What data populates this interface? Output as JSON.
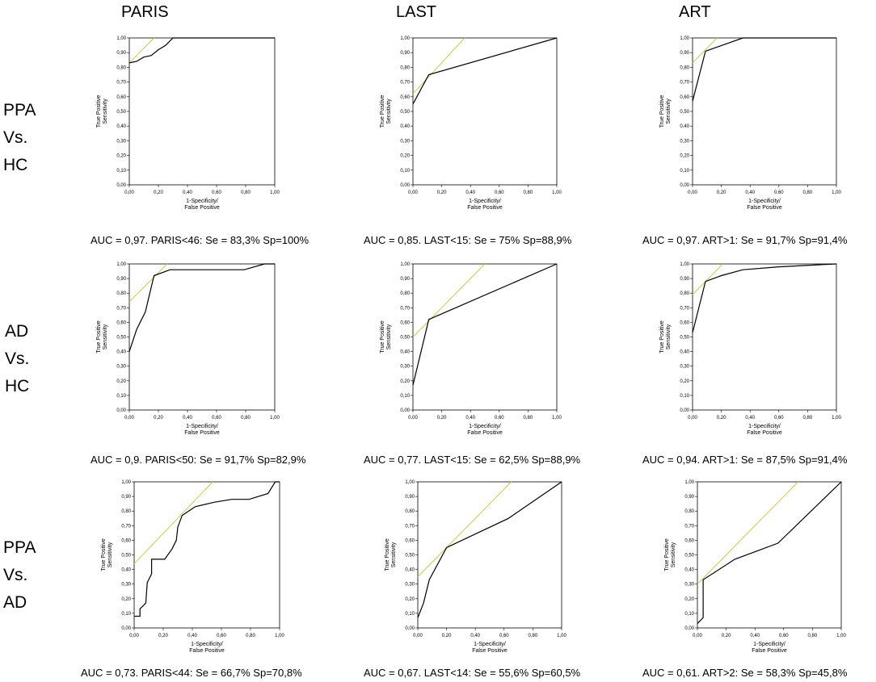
{
  "columns": [
    "PARIS",
    "LAST",
    "ART"
  ],
  "rows": [
    {
      "lines": [
        "PPA",
        "Vs.",
        "HC"
      ]
    },
    {
      "lines": [
        "AD",
        "Vs.",
        "HC"
      ]
    },
    {
      "lines": [
        "PPA",
        "Vs.",
        "AD"
      ]
    }
  ],
  "axis": {
    "xlabel1": "1-Specificity/",
    "xlabel2": "False Positive",
    "ylabel1": "True Positive",
    "ylabel2": "Sensitivity",
    "ticks": [
      "0,00",
      "0,10",
      "0,20",
      "0,30",
      "0,40",
      "0,50",
      "0,60",
      "0,70",
      "0,80",
      "0,90",
      "1,00"
    ],
    "xticks": [
      "0,00",
      "0,20",
      "0,40",
      "0,60",
      "0,80",
      "1,00"
    ]
  },
  "colors": {
    "roc": "#000000",
    "tangent": "#d6c64e",
    "axis": "#000000"
  },
  "chart_data": [
    {
      "type": "line",
      "row": 0,
      "col": 0,
      "caption": "AUC = 0,97. PARIS<46: Se = 83,3% Sp=100%",
      "roc": [
        [
          0,
          0.83
        ],
        [
          0.05,
          0.84
        ],
        [
          0.1,
          0.87
        ],
        [
          0.15,
          0.88
        ],
        [
          0.2,
          0.92
        ],
        [
          0.25,
          0.95
        ],
        [
          0.3,
          1
        ],
        [
          1,
          1
        ]
      ],
      "tangent": [
        [
          0,
          0.83
        ],
        [
          0.17,
          1
        ]
      ],
      "xlim": [
        0,
        1
      ],
      "ylim": [
        0,
        1
      ]
    },
    {
      "type": "line",
      "row": 0,
      "col": 1,
      "caption": "AUC = 0,85. LAST<15: Se = 75% Sp=88,9%",
      "roc": [
        [
          0,
          0.55
        ],
        [
          0.11,
          0.75
        ],
        [
          1,
          1
        ]
      ],
      "tangent": [
        [
          0,
          0.62
        ],
        [
          0.36,
          1
        ]
      ],
      "xlim": [
        0,
        1
      ],
      "ylim": [
        0,
        1
      ]
    },
    {
      "type": "line",
      "row": 0,
      "col": 2,
      "caption": "AUC = 0,97. ART>1: Se = 91,7% Sp=91,4%",
      "roc": [
        [
          0,
          0.57
        ],
        [
          0.09,
          0.91
        ],
        [
          0.35,
          1
        ],
        [
          1,
          1
        ]
      ],
      "tangent": [
        [
          0,
          0.83
        ],
        [
          0.17,
          1
        ]
      ],
      "xlim": [
        0,
        1
      ],
      "ylim": [
        0,
        1
      ]
    },
    {
      "type": "line",
      "row": 1,
      "col": 0,
      "caption": "AUC = 0,9. PARIS<50: Se = 91,7% Sp=82,9%",
      "roc": [
        [
          0,
          0.4
        ],
        [
          0.05,
          0.55
        ],
        [
          0.11,
          0.67
        ],
        [
          0.17,
          0.92
        ],
        [
          0.28,
          0.96
        ],
        [
          0.79,
          0.96
        ],
        [
          0.93,
          1
        ],
        [
          1,
          1
        ]
      ],
      "tangent": [
        [
          0,
          0.74
        ],
        [
          0.26,
          1
        ]
      ],
      "xlim": [
        0,
        1
      ],
      "ylim": [
        0,
        1
      ]
    },
    {
      "type": "line",
      "row": 1,
      "col": 1,
      "caption": "AUC = 0,77. LAST<15: Se = 62,5% Sp=88,9%",
      "roc": [
        [
          0,
          0.17
        ],
        [
          0.11,
          0.62
        ],
        [
          1,
          1
        ]
      ],
      "tangent": [
        [
          0,
          0.5
        ],
        [
          0.5,
          1
        ]
      ],
      "xlim": [
        0,
        1
      ],
      "ylim": [
        0,
        1
      ]
    },
    {
      "type": "line",
      "row": 1,
      "col": 2,
      "caption": "AUC = 0,94. ART>1: Se = 87,5% Sp=91,4%",
      "roc": [
        [
          0,
          0.53
        ],
        [
          0.09,
          0.88
        ],
        [
          0.2,
          0.92
        ],
        [
          0.35,
          0.96
        ],
        [
          0.6,
          0.98
        ],
        [
          1,
          1
        ]
      ],
      "tangent": [
        [
          0,
          0.79
        ],
        [
          0.21,
          1
        ]
      ],
      "xlim": [
        0,
        1
      ],
      "ylim": [
        0,
        1
      ]
    },
    {
      "type": "line",
      "row": 2,
      "col": 0,
      "caption": "AUC = 0,73. PARIS<44: Se = 66,7% Sp=70,8%",
      "roc": [
        [
          0,
          0.08
        ],
        [
          0.04,
          0.08
        ],
        [
          0.04,
          0.13
        ],
        [
          0.08,
          0.17
        ],
        [
          0.09,
          0.31
        ],
        [
          0.12,
          0.37
        ],
        [
          0.12,
          0.47
        ],
        [
          0.21,
          0.47
        ],
        [
          0.26,
          0.54
        ],
        [
          0.29,
          0.6
        ],
        [
          0.3,
          0.69
        ],
        [
          0.33,
          0.77
        ],
        [
          0.42,
          0.83
        ],
        [
          0.55,
          0.86
        ],
        [
          0.67,
          0.88
        ],
        [
          0.79,
          0.88
        ],
        [
          0.92,
          0.92
        ],
        [
          0.97,
          1
        ],
        [
          1,
          1
        ]
      ],
      "tangent": [
        [
          0,
          0.44
        ],
        [
          0.54,
          1
        ]
      ],
      "xlim": [
        0,
        1
      ],
      "ylim": [
        0,
        1
      ]
    },
    {
      "type": "line",
      "row": 2,
      "col": 1,
      "caption": "AUC = 0,67. LAST<14: Se = 55,6% Sp=60,5%",
      "roc": [
        [
          0,
          0.07
        ],
        [
          0.04,
          0.17
        ],
        [
          0.08,
          0.33
        ],
        [
          0.2,
          0.55
        ],
        [
          0.63,
          0.75
        ],
        [
          1,
          1
        ]
      ],
      "tangent": [
        [
          0,
          0.35
        ],
        [
          0.65,
          1
        ]
      ],
      "xlim": [
        0,
        1
      ],
      "ylim": [
        0,
        1
      ]
    },
    {
      "type": "line",
      "row": 2,
      "col": 2,
      "caption": "AUC = 0,61. ART>2: Se = 58,3% Sp=45,8%",
      "roc": [
        [
          0,
          0.03
        ],
        [
          0.04,
          0.07
        ],
        [
          0.04,
          0.33
        ],
        [
          0.26,
          0.47
        ],
        [
          0.56,
          0.58
        ],
        [
          1,
          1
        ]
      ],
      "tangent": [
        [
          0,
          0.3
        ],
        [
          0.7,
          1
        ]
      ],
      "xlim": [
        0,
        1
      ],
      "ylim": [
        0,
        1
      ]
    }
  ]
}
